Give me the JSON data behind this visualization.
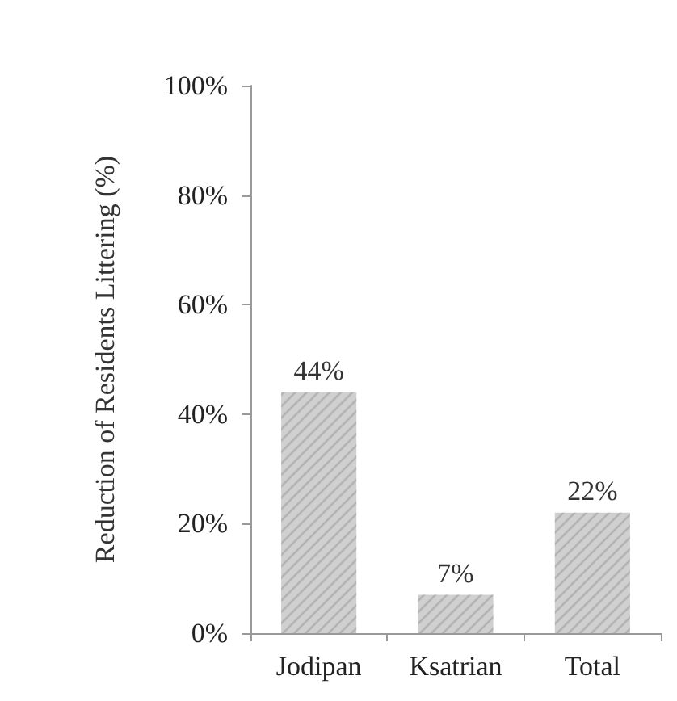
{
  "chart_data": {
    "type": "bar",
    "ylabel": "Reduction of Residents Littering (%)",
    "categories": [
      "Jodipan",
      "Ksatrian",
      "Total"
    ],
    "values": [
      44,
      7,
      22
    ],
    "color": "#d0d0d0",
    "value_labels": [
      "44%",
      "7%",
      "22%"
    ],
    "ylim": [
      0,
      100
    ],
    "yticks": [
      {
        "value": 0,
        "label": "0%"
      },
      {
        "value": 20,
        "label": "20%"
      },
      {
        "value": 40,
        "label": "40%"
      },
      {
        "value": 60,
        "label": "60%"
      },
      {
        "value": 80,
        "label": "80%"
      },
      {
        "value": 100,
        "label": "100%"
      }
    ],
    "grid": false
  }
}
